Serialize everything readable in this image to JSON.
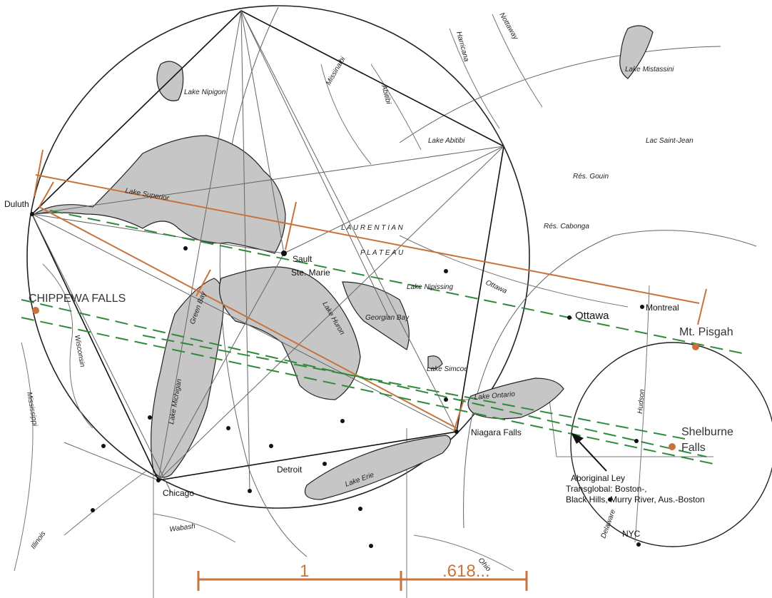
{
  "labels": {
    "lake_nipigon": "Lake Nipigon",
    "lake_superior": "Lake Superior",
    "lake_michigan": "Lake Michigan",
    "lake_huron": "Lake Huron",
    "lake_erie": "Lake Erie",
    "lake_ontario": "Lake Ontario",
    "lake_nipissing": "Lake Nipissing",
    "lake_abitibi": "Lake Abitibi",
    "lake_mistassini": "Lake Mistassini",
    "lac_saint_jean": "Lac Saint-Jean",
    "rss_gouin": "Rés. Gouin",
    "rss_cabonga": "Rés. Cabonga",
    "georgian_bay": "Georgian Bay",
    "green_bay": "Green Bay",
    "lake_simcoe": "Lake Simcoe",
    "laurentian": "L A U R E N T I A N",
    "plateau": "P L A T E A U",
    "missinaibi": "Missinaibi",
    "abitibi": "Abitibi",
    "harricana": "Harricana",
    "nottaway": "Nottaway",
    "ottawa_river": "Ottawa",
    "wisconsin": "Wisconsin",
    "mississippi": "Mississippi",
    "illinois": "Illinois",
    "wabash": "Wabash",
    "ohio": "Ohio",
    "hudson": "Hudson",
    "delaware": "Delaware"
  },
  "cities": {
    "duluth": "Duluth",
    "sault": "Sault",
    "ste_marie": "Ste. Marie",
    "chicago": "Chicago",
    "detroit": "Detroit",
    "niagara": "Niagara Falls",
    "ottawa": "Ottawa",
    "montreal": "Montreal",
    "nyc": "NYC"
  },
  "sites": {
    "chippewa": "CHIPPEWA FALLS",
    "pisgah": "Mt. Pisgah",
    "shelburne_1": "Shelburne",
    "shelburne_2": "Falls"
  },
  "annotation": {
    "line1": "Aboriginal Ley",
    "line2": "Transglobal: Boston-,",
    "line3": "Black Hills, Murry River, Aus.-Boston"
  },
  "scale": {
    "one": "1",
    "phi": ".618..."
  },
  "colors": {
    "orange": "#c8733c",
    "green": "#2f8a3b",
    "lake_fill": "#c6c6c6"
  }
}
